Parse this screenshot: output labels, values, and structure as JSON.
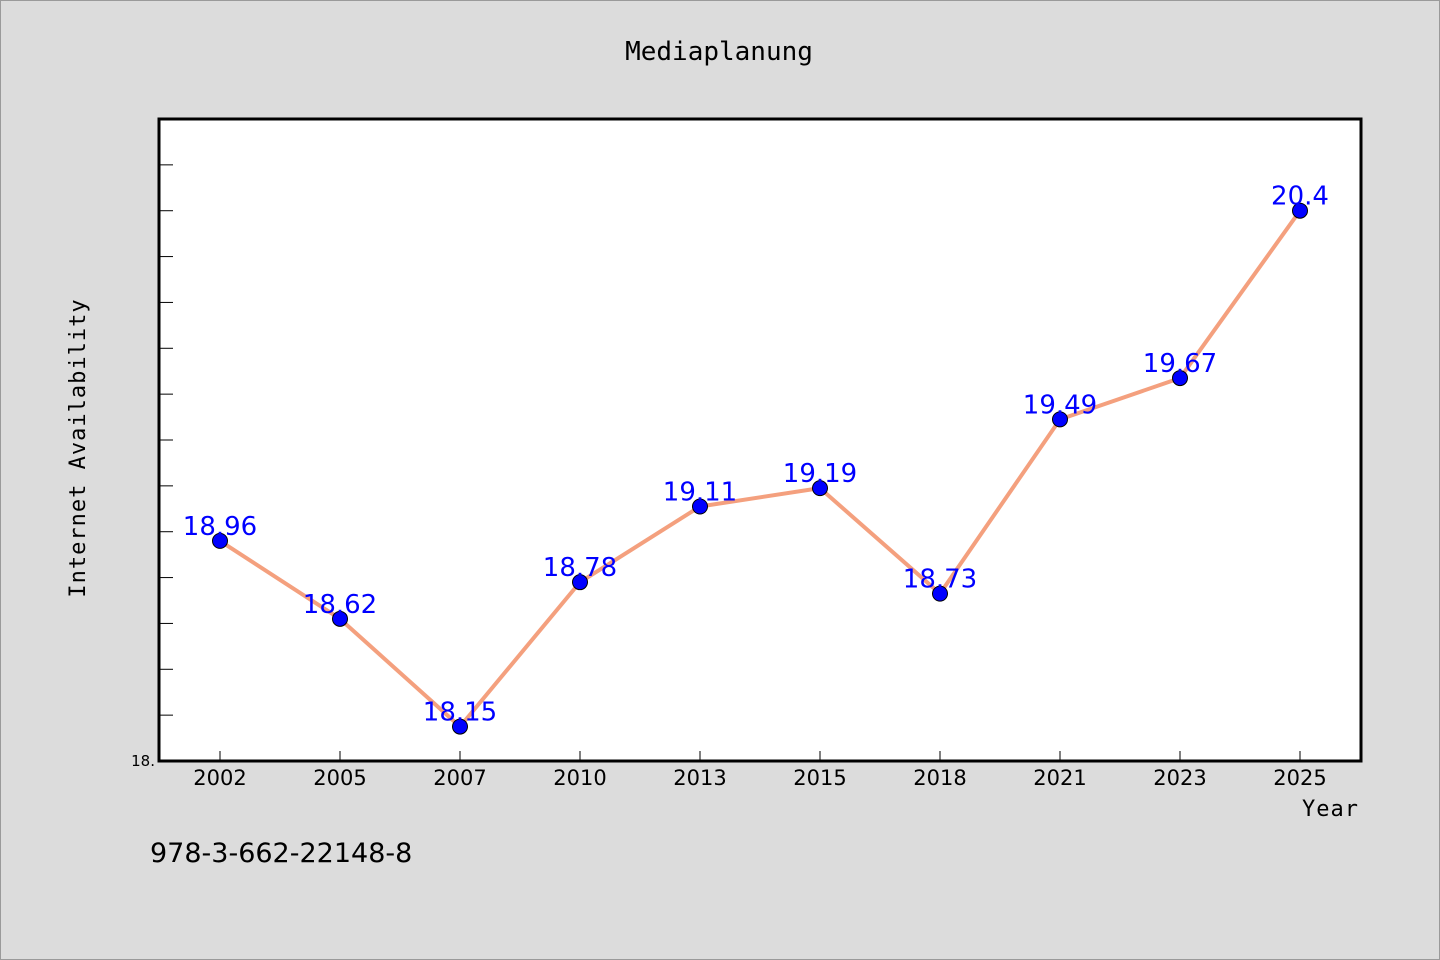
{
  "chart_data": {
    "type": "line",
    "title": "Mediaplanung",
    "xlabel": "Year",
    "ylabel": "Internet Availability",
    "categories": [
      "2002",
      "2005",
      "2007",
      "2010",
      "2013",
      "2015",
      "2018",
      "2021",
      "2023",
      "2025"
    ],
    "series": [
      {
        "values": [
          18.96,
          18.62,
          18.15,
          18.78,
          19.11,
          19.19,
          18.73,
          19.49,
          19.67,
          20.4
        ]
      }
    ],
    "data_labels": [
      "18.96",
      "18.62",
      "18.15",
      "18.78",
      "19.11",
      "19.19",
      "18.73",
      "19.49",
      "19.67",
      "20.4"
    ],
    "y_tick_labels": [
      {
        "value": 18.0,
        "label": "18."
      }
    ],
    "ylim": [
      18.0,
      20.8
    ],
    "y_minor_step": 0.2,
    "grid": false,
    "legend": "none",
    "line_color": "#f4a07e",
    "marker_color": "#0000ff",
    "label_color": "#0000ff"
  },
  "footer": {
    "isbn": "978-3-662-22148-8"
  }
}
